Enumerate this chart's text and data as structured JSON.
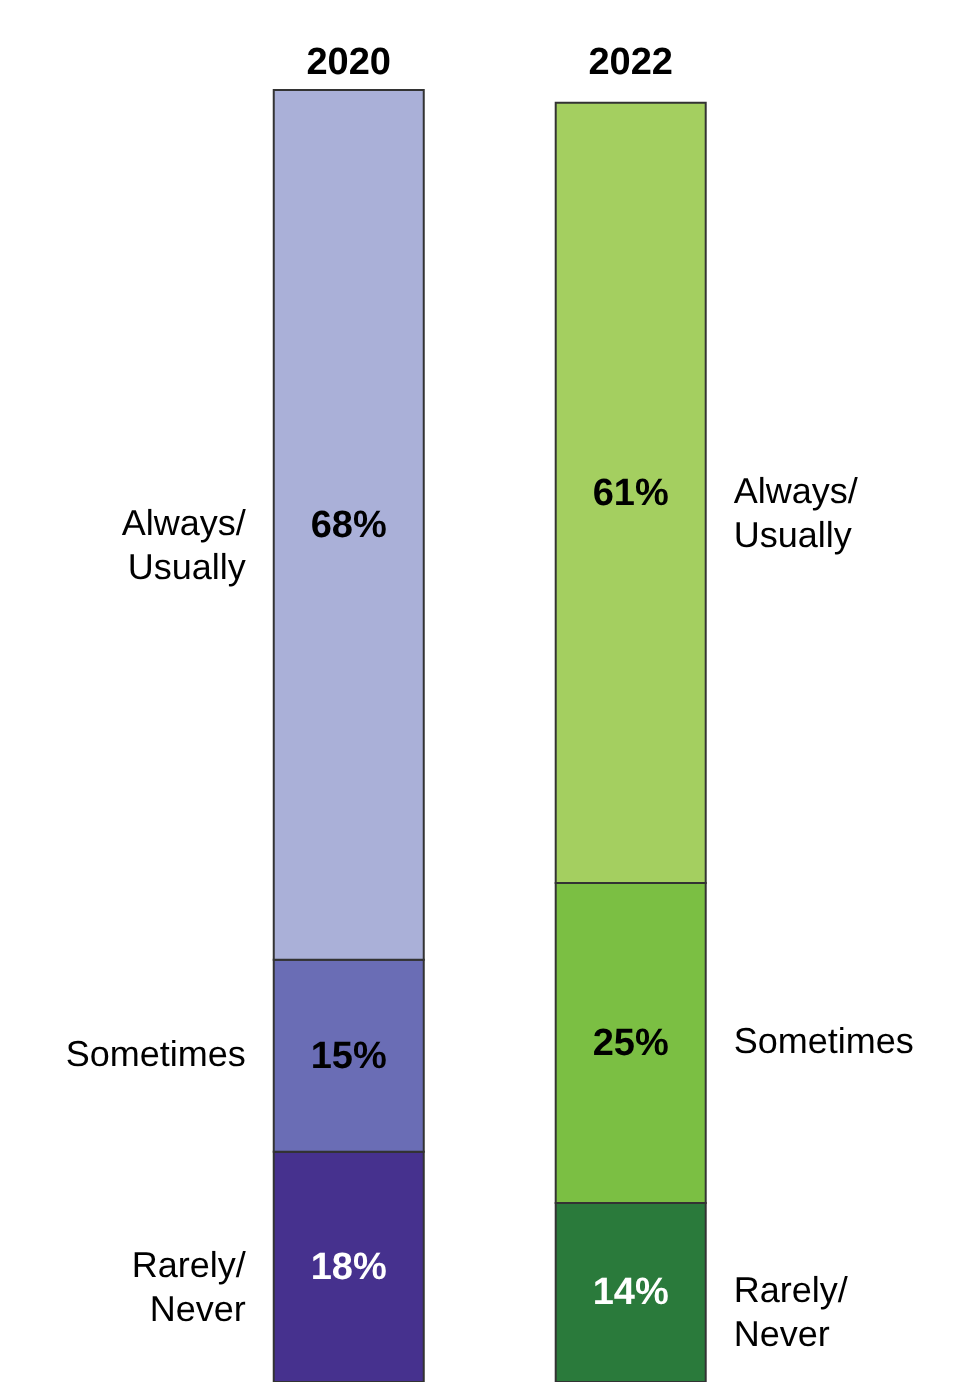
{
  "chart_data": {
    "type": "bar",
    "stacked": true,
    "categories": [
      "2020",
      "2022"
    ],
    "series": [
      {
        "name": "Rarely/Never",
        "colors": [
          "#46318e",
          "#2a7a3b"
        ],
        "values": [
          18,
          14
        ],
        "value_labels": [
          "18%",
          "14%"
        ]
      },
      {
        "name": "Sometimes",
        "colors": [
          "#6a6db5",
          "#7bbf43"
        ],
        "values": [
          15,
          25
        ],
        "value_labels": [
          "15%",
          "25%"
        ]
      },
      {
        "name": "Always/Usually",
        "colors": [
          "#aab0d8",
          "#a4cf60"
        ],
        "values": [
          68,
          61
        ],
        "value_labels": [
          "68%",
          "61%"
        ]
      }
    ]
  }
}
